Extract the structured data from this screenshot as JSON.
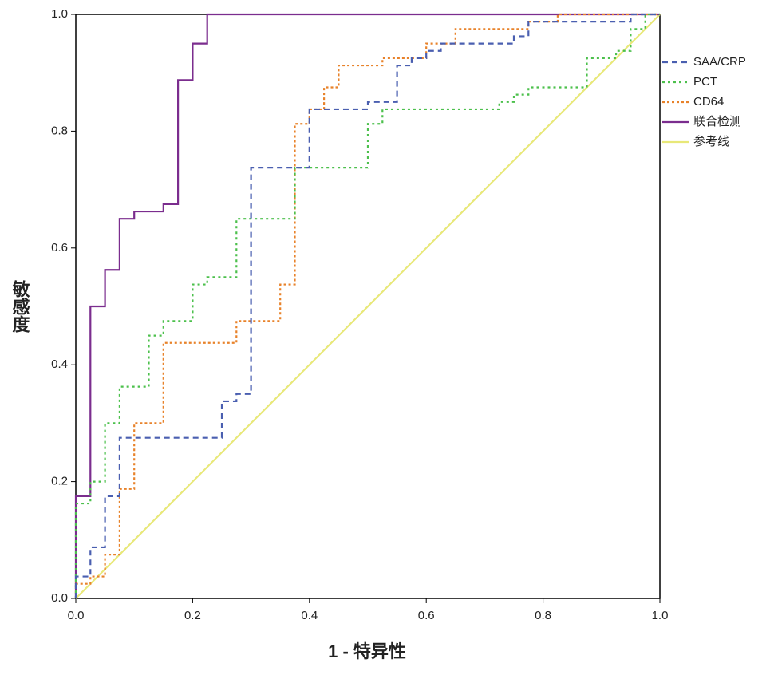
{
  "chart_data": {
    "type": "line",
    "xlabel": "1 - 特异性",
    "ylabel": "敏感度",
    "xlim": [
      0,
      1
    ],
    "ylim": [
      0,
      1
    ],
    "xticks": [
      {
        "value": 0,
        "label": "0.0"
      },
      0.2,
      0.4,
      0.6,
      0.8,
      {
        "value": 1,
        "label": "1.0"
      }
    ],
    "yticks": [
      {
        "value": 0,
        "label": "0.0"
      },
      0.2,
      0.4,
      0.6,
      0.8,
      {
        "value": 1,
        "label": "1.0"
      }
    ],
    "legend": "right",
    "series": [
      {
        "name": "SAA/CRP",
        "color": "#4a5fb0",
        "dash": "7,5",
        "x": [
          0,
          0,
          0.025,
          0.025,
          0.05,
          0.05,
          0.075,
          0.075,
          0.25,
          0.25,
          0.275,
          0.275,
          0.3,
          0.3,
          0.4,
          0.4,
          0.5,
          0.5,
          0.55,
          0.55,
          0.575,
          0.575,
          0.6,
          0.6,
          0.625,
          0.625,
          0.75,
          0.75,
          0.775,
          0.775,
          0.95,
          0.95,
          1
        ],
        "values": [
          0,
          0.0375,
          0.0375,
          0.0875,
          0.0875,
          0.175,
          0.175,
          0.275,
          0.275,
          0.3375,
          0.3375,
          0.35,
          0.35,
          0.7375,
          0.7375,
          0.8375,
          0.8375,
          0.85,
          0.85,
          0.9125,
          0.9125,
          0.925,
          0.925,
          0.9375,
          0.9375,
          0.95,
          0.95,
          0.9625,
          0.9625,
          0.9875,
          0.9875,
          1,
          1
        ]
      },
      {
        "name": "PCT",
        "color": "#4cc04c",
        "dash": "3,4",
        "x": [
          0,
          0,
          0.025,
          0.025,
          0.05,
          0.05,
          0.075,
          0.075,
          0.125,
          0.125,
          0.15,
          0.15,
          0.2,
          0.2,
          0.225,
          0.225,
          0.275,
          0.275,
          0.375,
          0.375,
          0.5,
          0.5,
          0.525,
          0.525,
          0.725,
          0.725,
          0.75,
          0.75,
          0.775,
          0.775,
          0.875,
          0.875,
          0.925,
          0.925,
          0.95,
          0.95,
          0.975,
          0.975,
          1
        ],
        "values": [
          0,
          0.1625,
          0.1625,
          0.2,
          0.2,
          0.3,
          0.3,
          0.3625,
          0.3625,
          0.45,
          0.45,
          0.475,
          0.475,
          0.5375,
          0.5375,
          0.55,
          0.55,
          0.65,
          0.65,
          0.7375,
          0.7375,
          0.8125,
          0.8125,
          0.8375,
          0.8375,
          0.85,
          0.85,
          0.8625,
          0.8625,
          0.875,
          0.875,
          0.925,
          0.925,
          0.9375,
          0.9375,
          0.975,
          0.975,
          1,
          1
        ]
      },
      {
        "name": "CD64",
        "color": "#e8822a",
        "dash": "3,3",
        "x": [
          0,
          0,
          0.025,
          0.025,
          0.05,
          0.05,
          0.075,
          0.075,
          0.1,
          0.1,
          0.15,
          0.15,
          0.275,
          0.275,
          0.35,
          0.35,
          0.375,
          0.375,
          0.4,
          0.4,
          0.425,
          0.425,
          0.45,
          0.45,
          0.525,
          0.525,
          0.6,
          0.6,
          0.65,
          0.65,
          0.775,
          0.775,
          0.825,
          0.825,
          1
        ],
        "values": [
          0,
          0.025,
          0.025,
          0.0375,
          0.0375,
          0.075,
          0.075,
          0.1875,
          0.1875,
          0.3,
          0.3,
          0.4375,
          0.4375,
          0.475,
          0.475,
          0.5375,
          0.5375,
          0.8125,
          0.8125,
          0.8375,
          0.8375,
          0.875,
          0.875,
          0.9125,
          0.9125,
          0.925,
          0.925,
          0.95,
          0.95,
          0.975,
          0.975,
          0.9875,
          0.9875,
          1,
          1
        ]
      },
      {
        "name": "联合检测",
        "color": "#7b2d8e",
        "dash": "none",
        "x": [
          0,
          0,
          0.025,
          0.025,
          0.05,
          0.05,
          0.075,
          0.075,
          0.1,
          0.1,
          0.15,
          0.15,
          0.175,
          0.175,
          0.2,
          0.2,
          0.225,
          0.225,
          1
        ],
        "values": [
          0,
          0.175,
          0.175,
          0.5,
          0.5,
          0.5625,
          0.5625,
          0.65,
          0.65,
          0.6625,
          0.6625,
          0.675,
          0.675,
          0.8875,
          0.8875,
          0.95,
          0.95,
          1,
          1
        ]
      },
      {
        "name": "参考线",
        "color": "#e8e878",
        "dash": "none",
        "x": [
          0,
          1
        ],
        "values": [
          0,
          1
        ]
      }
    ]
  }
}
